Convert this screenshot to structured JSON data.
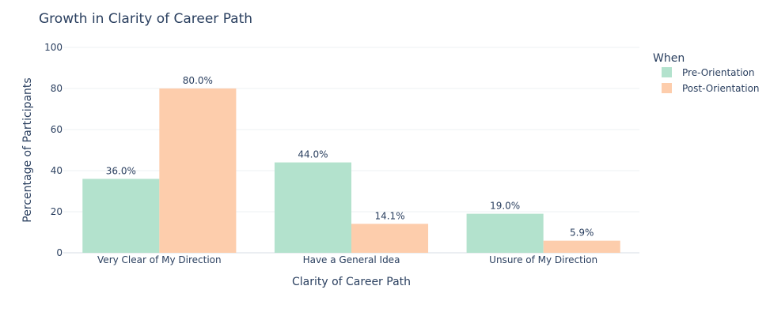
{
  "chart_data": {
    "type": "bar",
    "title": "Growth in Clarity of Career Path",
    "xlabel": "Clarity of Career Path",
    "ylabel": "Percentage of Participants",
    "categories": [
      "Very Clear of My Direction",
      "Have a General Idea",
      "Unsure of My Direction"
    ],
    "series": [
      {
        "name": "Pre-Orientation",
        "color": "#b3e2cd",
        "values": [
          36.0,
          44.0,
          19.0
        ],
        "labels": [
          "36.0%",
          "44.0%",
          "19.0%"
        ]
      },
      {
        "name": "Post-Orientation",
        "color": "#fdcdac",
        "values": [
          80.0,
          14.1,
          5.9
        ],
        "labels": [
          "80.0%",
          "14.1%",
          "5.9%"
        ]
      }
    ],
    "ylim": [
      0,
      100
    ],
    "yticks": [
      0,
      20,
      40,
      60,
      80,
      100
    ],
    "grid": true,
    "legend": {
      "title": "When",
      "placement": "right"
    }
  }
}
